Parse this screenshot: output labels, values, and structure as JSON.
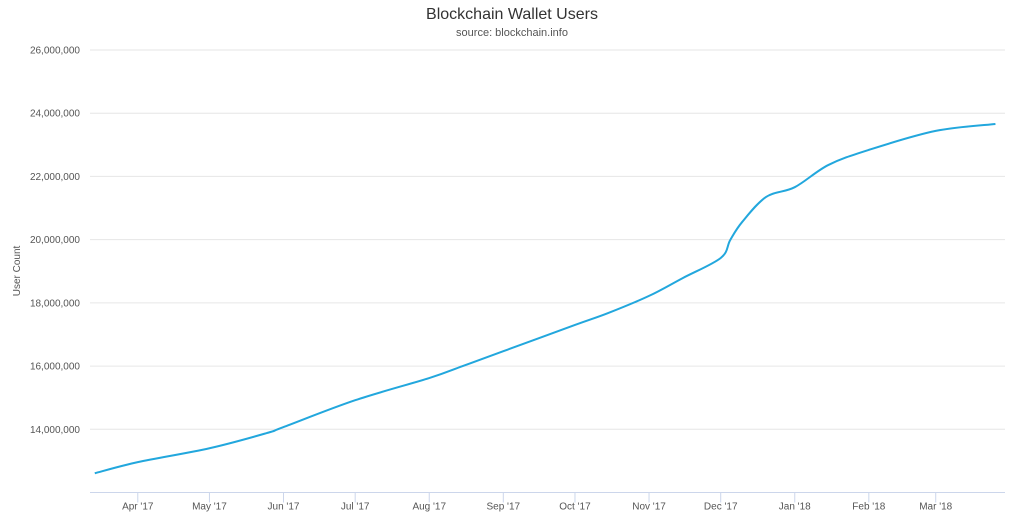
{
  "chart_data": {
    "type": "line",
    "title": "Blockchain Wallet Users",
    "subtitle": "source: blockchain.info",
    "xlabel": "",
    "ylabel": "User Count",
    "ylim": [
      12000000,
      26000000
    ],
    "yticks": [
      14000000,
      16000000,
      18000000,
      20000000,
      22000000,
      24000000,
      26000000
    ],
    "ytick_labels": [
      "14,000,000",
      "16,000,000",
      "18,000,000",
      "20,000,000",
      "22,000,000",
      "24,000,000",
      "26,000,000"
    ],
    "xlim": [
      "2017-03-12",
      "2018-03-30"
    ],
    "xticks": [
      "2017-04-01",
      "2017-05-01",
      "2017-06-01",
      "2017-07-01",
      "2017-08-01",
      "2017-09-01",
      "2017-10-01",
      "2017-11-01",
      "2017-12-01",
      "2018-01-01",
      "2018-02-01",
      "2018-03-01"
    ],
    "xtick_labels": [
      "Apr '17",
      "May '17",
      "Jun '17",
      "Jul '17",
      "Aug '17",
      "Sep '17",
      "Oct '17",
      "Nov '17",
      "Dec '17",
      "Jan '18",
      "Feb '18",
      "Mar '18"
    ],
    "grid": true,
    "line_color": "#22a7dd",
    "series": [
      {
        "x": [
          "2017-03-14",
          "2017-04-01",
          "2017-05-01",
          "2017-05-25",
          "2017-06-01",
          "2017-07-01",
          "2017-08-01",
          "2017-08-15",
          "2017-09-01",
          "2017-10-01",
          "2017-10-15",
          "2017-11-01",
          "2017-11-15",
          "2017-12-01",
          "2017-12-05",
          "2017-12-10",
          "2017-12-20",
          "2018-01-01",
          "2018-01-15",
          "2018-02-01",
          "2018-03-01",
          "2018-03-26"
        ],
        "values": [
          12610000,
          12960000,
          13400000,
          13880000,
          14070000,
          14920000,
          15620000,
          16000000,
          16470000,
          17300000,
          17680000,
          18220000,
          18780000,
          19420000,
          19990000,
          20560000,
          21350000,
          21660000,
          22360000,
          22840000,
          23440000,
          23660000
        ]
      }
    ]
  }
}
